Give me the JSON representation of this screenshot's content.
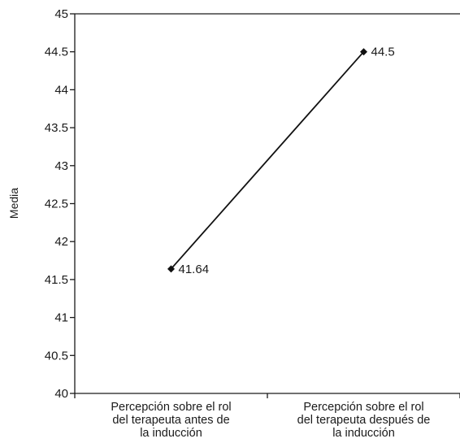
{
  "chart_data": {
    "type": "line",
    "title": "",
    "xlabel": "",
    "ylabel": "Media",
    "ylim": [
      40,
      45
    ],
    "yticks": [
      40,
      40.5,
      41,
      41.5,
      42,
      42.5,
      43,
      43.5,
      44,
      44.5,
      45
    ],
    "ytick_labels": [
      "40",
      "40.5",
      "41",
      "41.5",
      "42",
      "42.5",
      "43",
      "43.5",
      "44",
      "44.5",
      "45"
    ],
    "categories": [
      [
        "Percepción sobre el rol",
        "del terapeuta antes de",
        "la inducción"
      ],
      [
        "Percepción sobre el rol",
        "del terapeuta después de",
        "la inducción"
      ]
    ],
    "values": [
      41.64,
      44.5
    ],
    "data_labels": [
      "41.64",
      "44.5"
    ],
    "grid": false,
    "legend": "none",
    "colors": {
      "line": "#111111",
      "marker": "#111111",
      "axis": "#1a1a1a"
    }
  }
}
